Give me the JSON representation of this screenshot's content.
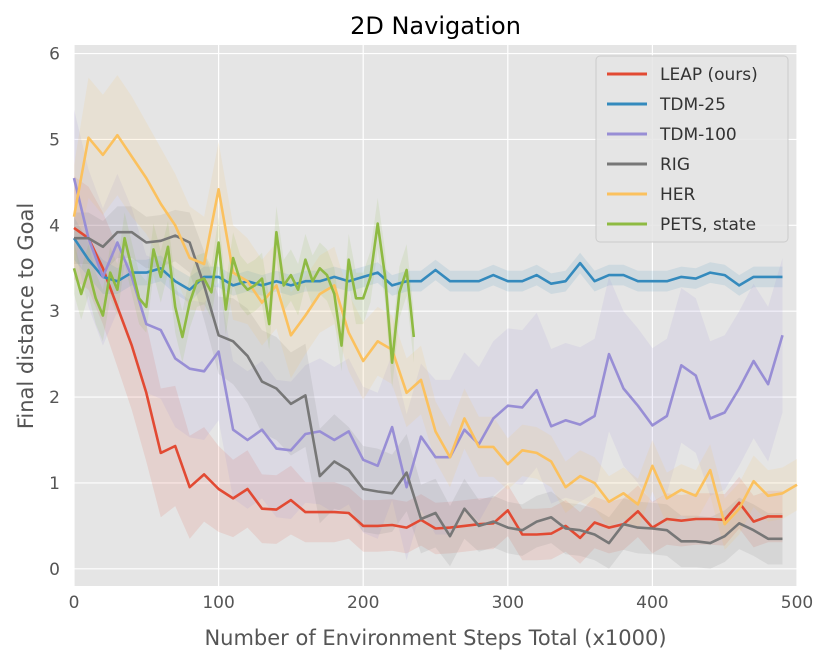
{
  "chart_data": {
    "type": "line",
    "title": "2D Navigation",
    "xlabel": "Number of Environment Steps Total (x1000)",
    "ylabel": "Final distance to Goal",
    "xlim": [
      0,
      500
    ],
    "ylim": [
      -0.2,
      6.1
    ],
    "xticks": [
      0,
      100,
      200,
      300,
      400,
      500
    ],
    "yticks": [
      0,
      1,
      2,
      3,
      4,
      5,
      6
    ],
    "grid": true,
    "legend_position": "top-right",
    "series": [
      {
        "name": "LEAP (ours)",
        "color": "#e24a33",
        "x": [
          0,
          10,
          20,
          30,
          40,
          50,
          60,
          70,
          80,
          90,
          100,
          110,
          120,
          130,
          140,
          150,
          160,
          170,
          180,
          190,
          200,
          210,
          220,
          230,
          240,
          250,
          260,
          270,
          280,
          290,
          300,
          310,
          320,
          330,
          340,
          350,
          360,
          370,
          380,
          390,
          400,
          410,
          420,
          430,
          440,
          450,
          460,
          470,
          480,
          490
        ],
        "y": [
          3.97,
          3.85,
          3.5,
          3.05,
          2.6,
          2.05,
          1.35,
          1.43,
          0.95,
          1.1,
          0.93,
          0.82,
          0.93,
          0.7,
          0.69,
          0.8,
          0.66,
          0.66,
          0.66,
          0.65,
          0.5,
          0.5,
          0.51,
          0.48,
          0.57,
          0.47,
          0.48,
          0.5,
          0.52,
          0.53,
          0.68,
          0.4,
          0.4,
          0.41,
          0.5,
          0.36,
          0.54,
          0.48,
          0.52,
          0.67,
          0.48,
          0.58,
          0.56,
          0.58,
          0.58,
          0.57,
          0.77,
          0.55,
          0.61,
          0.61
        ],
        "band": [
          0.6,
          0.6,
          0.65,
          0.7,
          0.75,
          0.8,
          0.75,
          0.7,
          0.6,
          0.55,
          0.5,
          0.45,
          0.45,
          0.4,
          0.4,
          0.4,
          0.35,
          0.35,
          0.35,
          0.3,
          0.3,
          0.3,
          0.3,
          0.3,
          0.3,
          0.3,
          0.3,
          0.3,
          0.3,
          0.3,
          0.3,
          0.3,
          0.3,
          0.3,
          0.3,
          0.3,
          0.3,
          0.3,
          0.3,
          0.3,
          0.3,
          0.3,
          0.3,
          0.3,
          0.3,
          0.3,
          0.3,
          0.3,
          0.3,
          0.3
        ]
      },
      {
        "name": "TDM-25",
        "color": "#348abd",
        "x": [
          0,
          10,
          20,
          30,
          40,
          50,
          60,
          70,
          80,
          90,
          100,
          110,
          120,
          130,
          140,
          150,
          160,
          170,
          180,
          190,
          200,
          210,
          220,
          230,
          240,
          250,
          260,
          270,
          280,
          290,
          300,
          310,
          320,
          330,
          340,
          350,
          360,
          370,
          380,
          390,
          400,
          410,
          420,
          430,
          440,
          450,
          460,
          470,
          480,
          490
        ],
        "y": [
          3.85,
          3.6,
          3.4,
          3.35,
          3.45,
          3.45,
          3.5,
          3.35,
          3.25,
          3.4,
          3.4,
          3.3,
          3.35,
          3.3,
          3.35,
          3.3,
          3.35,
          3.35,
          3.4,
          3.35,
          3.4,
          3.45,
          3.3,
          3.35,
          3.35,
          3.48,
          3.35,
          3.35,
          3.35,
          3.42,
          3.35,
          3.35,
          3.42,
          3.32,
          3.35,
          3.56,
          3.35,
          3.42,
          3.42,
          3.35,
          3.35,
          3.35,
          3.4,
          3.38,
          3.45,
          3.42,
          3.3,
          3.4,
          3.4,
          3.4
        ],
        "band": [
          0.25,
          0.2,
          0.2,
          0.15,
          0.15,
          0.15,
          0.15,
          0.15,
          0.15,
          0.12,
          0.12,
          0.12,
          0.12,
          0.12,
          0.12,
          0.12,
          0.12,
          0.12,
          0.12,
          0.12,
          0.12,
          0.12,
          0.12,
          0.12,
          0.12,
          0.12,
          0.12,
          0.12,
          0.12,
          0.12,
          0.12,
          0.12,
          0.12,
          0.12,
          0.12,
          0.12,
          0.12,
          0.12,
          0.12,
          0.12,
          0.12,
          0.12,
          0.12,
          0.12,
          0.12,
          0.12,
          0.12,
          0.12,
          0.12,
          0.12
        ]
      },
      {
        "name": "TDM-100",
        "color": "#988ed5",
        "x": [
          0,
          10,
          20,
          30,
          40,
          50,
          60,
          70,
          80,
          90,
          100,
          110,
          120,
          130,
          140,
          150,
          160,
          170,
          180,
          190,
          200,
          210,
          220,
          230,
          240,
          250,
          260,
          270,
          280,
          290,
          300,
          310,
          320,
          330,
          340,
          350,
          360,
          370,
          380,
          390,
          400,
          410,
          420,
          430,
          440,
          450,
          460,
          470,
          480,
          490
        ],
        "y": [
          4.55,
          3.85,
          3.4,
          3.8,
          3.4,
          2.85,
          2.78,
          2.45,
          2.33,
          2.3,
          2.53,
          1.62,
          1.5,
          1.62,
          1.4,
          1.38,
          1.57,
          1.6,
          1.5,
          1.6,
          1.27,
          1.2,
          1.65,
          0.95,
          1.54,
          1.3,
          1.3,
          1.62,
          1.45,
          1.75,
          1.9,
          1.88,
          2.08,
          1.66,
          1.73,
          1.68,
          1.78,
          2.5,
          2.1,
          1.9,
          1.67,
          1.78,
          2.37,
          2.25,
          1.75,
          1.82,
          2.1,
          2.42,
          2.15,
          2.72
        ],
        "band": [
          0.8,
          0.8,
          0.8,
          0.8,
          0.8,
          0.8,
          0.8,
          0.8,
          0.8,
          0.8,
          0.8,
          0.8,
          0.8,
          0.8,
          0.8,
          0.8,
          0.8,
          0.85,
          0.85,
          0.85,
          0.85,
          0.85,
          0.85,
          0.85,
          0.85,
          0.9,
          0.9,
          0.9,
          0.9,
          0.9,
          0.9,
          0.9,
          0.9,
          0.9,
          0.9,
          0.9,
          0.9,
          0.9,
          0.9,
          0.9,
          0.9,
          0.9,
          0.9,
          0.9,
          0.9,
          0.9,
          0.9,
          0.9,
          0.9,
          0.9
        ]
      },
      {
        "name": "RIG",
        "color": "#777777",
        "x": [
          0,
          10,
          20,
          30,
          40,
          50,
          60,
          70,
          80,
          90,
          100,
          110,
          120,
          130,
          140,
          150,
          160,
          170,
          180,
          190,
          200,
          210,
          220,
          230,
          240,
          250,
          260,
          270,
          280,
          290,
          300,
          310,
          320,
          330,
          340,
          350,
          360,
          370,
          380,
          390,
          400,
          410,
          420,
          430,
          440,
          450,
          460,
          470,
          480,
          490
        ],
        "y": [
          3.85,
          3.85,
          3.75,
          3.92,
          3.92,
          3.8,
          3.82,
          3.88,
          3.8,
          3.3,
          2.72,
          2.65,
          2.48,
          2.18,
          2.1,
          1.92,
          2.02,
          1.08,
          1.25,
          1.15,
          0.93,
          0.9,
          0.88,
          1.12,
          0.58,
          0.65,
          0.38,
          0.7,
          0.5,
          0.55,
          0.48,
          0.45,
          0.55,
          0.6,
          0.47,
          0.45,
          0.4,
          0.3,
          0.52,
          0.48,
          0.47,
          0.45,
          0.32,
          0.32,
          0.3,
          0.38,
          0.53,
          0.45,
          0.35,
          0.35
        ],
        "band": [
          0.3,
          0.3,
          0.3,
          0.3,
          0.3,
          0.3,
          0.3,
          0.3,
          0.35,
          0.4,
          0.45,
          0.5,
          0.55,
          0.6,
          0.6,
          0.6,
          0.6,
          0.55,
          0.55,
          0.5,
          0.5,
          0.5,
          0.45,
          0.45,
          0.4,
          0.4,
          0.35,
          0.35,
          0.3,
          0.3,
          0.3,
          0.3,
          0.3,
          0.3,
          0.3,
          0.3,
          0.3,
          0.3,
          0.3,
          0.3,
          0.3,
          0.3,
          0.3,
          0.3,
          0.3,
          0.3,
          0.3,
          0.3,
          0.3,
          0.3
        ]
      },
      {
        "name": "HER",
        "color": "#fbc15e",
        "x": [
          0,
          10,
          20,
          30,
          40,
          50,
          60,
          70,
          80,
          90,
          100,
          110,
          120,
          130,
          140,
          150,
          160,
          170,
          180,
          190,
          200,
          210,
          220,
          230,
          240,
          250,
          260,
          270,
          280,
          290,
          300,
          310,
          320,
          330,
          340,
          350,
          360,
          370,
          380,
          390,
          400,
          410,
          420,
          430,
          440,
          450,
          460,
          470,
          480,
          490,
          500
        ],
        "y": [
          4.1,
          5.02,
          4.82,
          5.05,
          4.8,
          4.55,
          4.25,
          4.0,
          3.62,
          3.55,
          4.42,
          3.45,
          3.35,
          3.1,
          3.3,
          2.72,
          2.95,
          3.2,
          3.3,
          2.75,
          2.42,
          2.65,
          2.55,
          2.05,
          2.2,
          1.6,
          1.3,
          1.75,
          1.42,
          1.42,
          1.22,
          1.38,
          1.35,
          1.25,
          0.95,
          1.08,
          1.0,
          0.78,
          0.88,
          0.75,
          1.2,
          0.82,
          0.92,
          0.85,
          1.15,
          0.52,
          0.7,
          1.02,
          0.85,
          0.88,
          0.98
        ],
        "band": [
          0.6,
          0.7,
          0.7,
          0.7,
          0.7,
          0.65,
          0.65,
          0.6,
          0.6,
          0.55,
          0.55,
          0.55,
          0.5,
          0.5,
          0.5,
          0.5,
          0.45,
          0.45,
          0.45,
          0.45,
          0.45,
          0.4,
          0.4,
          0.4,
          0.4,
          0.35,
          0.35,
          0.35,
          0.35,
          0.35,
          0.3,
          0.3,
          0.3,
          0.3,
          0.3,
          0.3,
          0.3,
          0.3,
          0.3,
          0.3,
          0.3,
          0.3,
          0.3,
          0.3,
          0.3,
          0.3,
          0.3,
          0.3,
          0.3,
          0.3,
          0.3
        ]
      },
      {
        "name": "PETS, state",
        "color": "#8eba42",
        "x": [
          0,
          5,
          10,
          15,
          20,
          25,
          30,
          35,
          40,
          45,
          50,
          55,
          60,
          65,
          70,
          75,
          80,
          85,
          90,
          95,
          100,
          105,
          110,
          115,
          120,
          125,
          130,
          135,
          140,
          145,
          150,
          155,
          160,
          165,
          170,
          175,
          180,
          185,
          190,
          195,
          200,
          205,
          210,
          215,
          220,
          225,
          230,
          235
        ],
        "y": [
          3.5,
          3.2,
          3.48,
          3.15,
          2.95,
          3.45,
          3.25,
          3.85,
          3.5,
          3.15,
          3.05,
          3.72,
          3.4,
          3.75,
          3.05,
          2.7,
          3.1,
          3.35,
          3.38,
          3.22,
          3.8,
          3.02,
          3.62,
          3.35,
          3.25,
          3.3,
          3.38,
          2.85,
          3.92,
          3.3,
          3.42,
          3.25,
          3.6,
          3.35,
          3.5,
          3.42,
          3.2,
          2.6,
          3.6,
          3.15,
          3.15,
          3.4,
          4.02,
          3.42,
          2.4,
          3.22,
          3.48,
          2.7
        ],
        "band": [
          0.3,
          0.3,
          0.3,
          0.3,
          0.3,
          0.3,
          0.3,
          0.3,
          0.3,
          0.3,
          0.3,
          0.3,
          0.3,
          0.3,
          0.3,
          0.3,
          0.3,
          0.3,
          0.3,
          0.3,
          0.3,
          0.3,
          0.3,
          0.3,
          0.3,
          0.3,
          0.3,
          0.3,
          0.3,
          0.3,
          0.3,
          0.3,
          0.3,
          0.3,
          0.3,
          0.3,
          0.3,
          0.3,
          0.3,
          0.3,
          0.3,
          0.3,
          0.3,
          0.3,
          0.3,
          0.3,
          0.3,
          0.3
        ]
      }
    ]
  }
}
